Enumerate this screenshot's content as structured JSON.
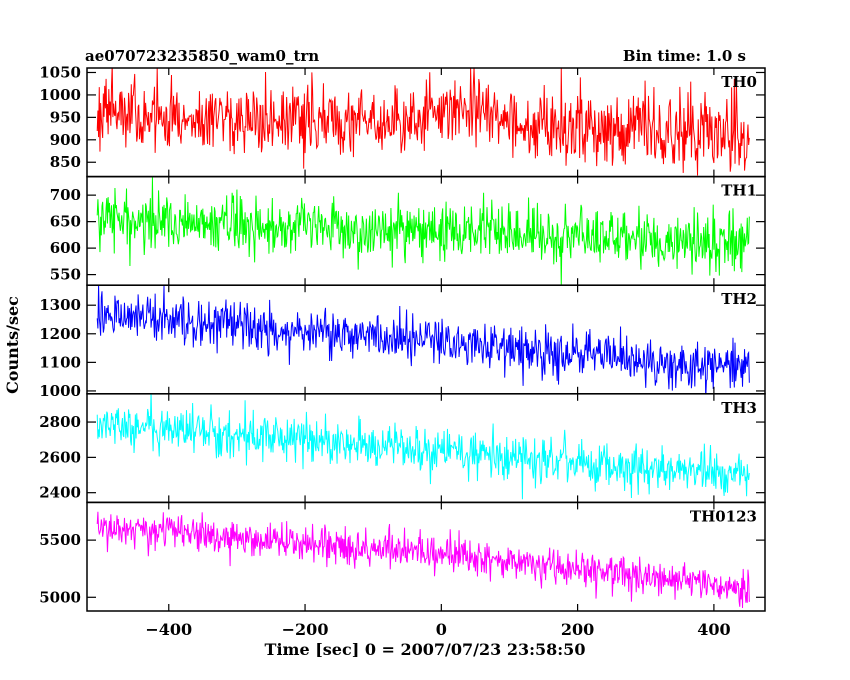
{
  "chart_data": {
    "type": "line",
    "title_left": "ae070723235850_wam0_trn",
    "title_right": "Bin time: 1.0 s",
    "xlabel": "Time [sec] 0 = 2007/07/23 23:58:50",
    "ylabel": "Counts/sec",
    "xlim": [
      -520,
      475
    ],
    "x_range_data": [
      -505,
      452
    ],
    "x_ticks": [
      -400,
      -200,
      0,
      200,
      400
    ],
    "x_tick_labels": [
      "−400",
      "−200",
      "0",
      "200",
      "400"
    ],
    "panels": [
      {
        "name": "TH0",
        "color": "#ff0000",
        "ylim": [
          818,
          1060
        ],
        "y_ticks": [
          850,
          900,
          950,
          1000,
          1050
        ],
        "y_tick_labels": [
          "850",
          "900",
          "950",
          "1000",
          "1050"
        ],
        "trend": [
          [
            -505,
            950
          ],
          [
            -300,
            945
          ],
          [
            0,
            935
          ],
          [
            15,
            980
          ],
          [
            100,
            935
          ],
          [
            452,
            915
          ]
        ],
        "noise": 40
      },
      {
        "name": "TH1",
        "color": "#00ff00",
        "ylim": [
          530,
          735
        ],
        "y_ticks": [
          550,
          600,
          650,
          700
        ],
        "y_tick_labels": [
          "550",
          "600",
          "650",
          "700"
        ],
        "trend": [
          [
            -505,
            655
          ],
          [
            0,
            632
          ],
          [
            452,
            610
          ]
        ],
        "noise": 28
      },
      {
        "name": "TH2",
        "color": "#0000ff",
        "ylim": [
          990,
          1370
        ],
        "y_ticks": [
          1000,
          1100,
          1200,
          1300
        ],
        "y_tick_labels": [
          "1000",
          "1100",
          "1200",
          "1300"
        ],
        "trend": [
          [
            -505,
            1270
          ],
          [
            0,
            1170
          ],
          [
            452,
            1075
          ]
        ],
        "noise": 42
      },
      {
        "name": "TH3",
        "color": "#00ffff",
        "ylim": [
          2345,
          2960
        ],
        "y_ticks": [
          2400,
          2600,
          2800
        ],
        "y_tick_labels": [
          "2400",
          "2600",
          "2800"
        ],
        "trend": [
          [
            -505,
            2790
          ],
          [
            0,
            2640
          ],
          [
            452,
            2490
          ]
        ],
        "noise": 65
      },
      {
        "name": "TH0123",
        "color": "#ff00ff",
        "ylim": [
          4880,
          5830
        ],
        "y_ticks": [
          5000,
          5500
        ],
        "y_tick_labels": [
          "5000",
          "5500"
        ],
        "trend": [
          [
            -505,
            5620
          ],
          [
            0,
            5370
          ],
          [
            452,
            5080
          ]
        ],
        "noise": 80
      }
    ],
    "grid": false,
    "legend": "none"
  }
}
